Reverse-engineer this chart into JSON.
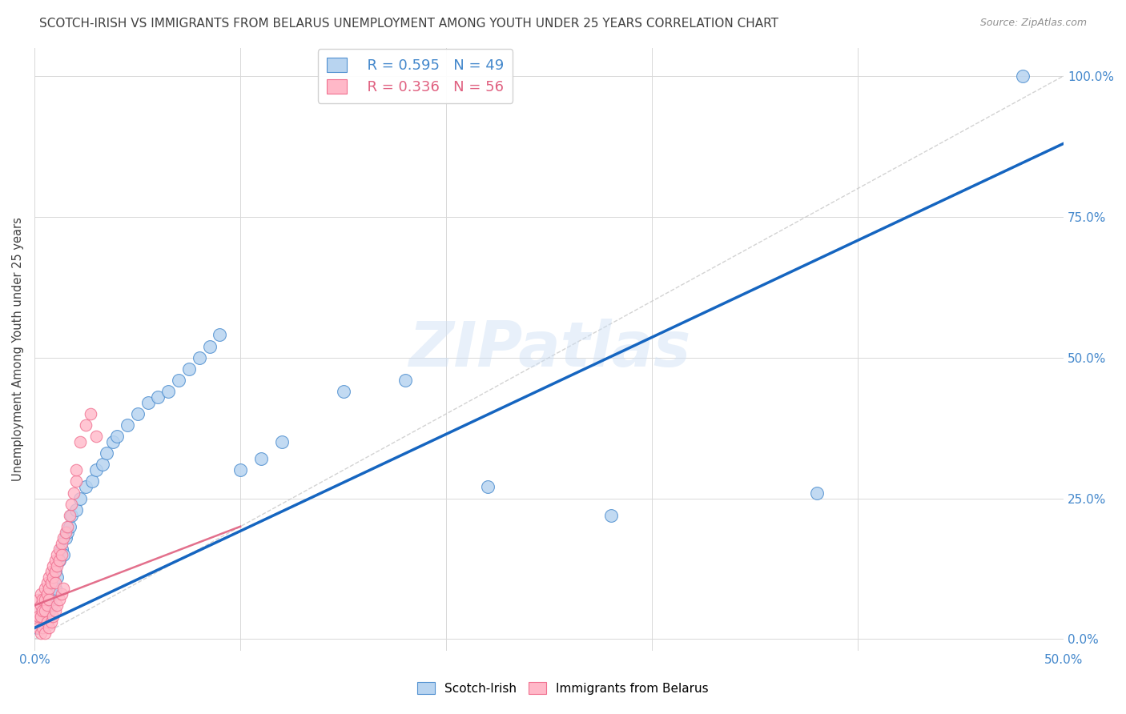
{
  "title": "SCOTCH-IRISH VS IMMIGRANTS FROM BELARUS UNEMPLOYMENT AMONG YOUTH UNDER 25 YEARS CORRELATION CHART",
  "source": "Source: ZipAtlas.com",
  "ylabel": "Unemployment Among Youth under 25 years",
  "ylabel_right_ticks": [
    "0.0%",
    "25.0%",
    "50.0%",
    "75.0%",
    "100.0%"
  ],
  "ylabel_right_vals": [
    0.0,
    0.25,
    0.5,
    0.75,
    1.0
  ],
  "legend_blue_r": "R = 0.595",
  "legend_blue_n": "N = 49",
  "legend_pink_r": "R = 0.336",
  "legend_pink_n": "N = 56",
  "legend_blue_label": "Scotch-Irish",
  "legend_pink_label": "Immigrants from Belarus",
  "watermark": "ZIPatlas",
  "blue_color": "#b8d4f0",
  "blue_edge": "#5090d0",
  "pink_color": "#ffb8c8",
  "pink_edge": "#f07090",
  "line_blue": "#1565c0",
  "line_pink": "#e06080",
  "diag_color": "#c8c8c8",
  "title_color": "#404040",
  "axis_color": "#4488cc",
  "blue_scatter_x": [
    0.001,
    0.002,
    0.003,
    0.004,
    0.005,
    0.005,
    0.006,
    0.007,
    0.008,
    0.008,
    0.009,
    0.01,
    0.01,
    0.011,
    0.012,
    0.013,
    0.014,
    0.015,
    0.016,
    0.017,
    0.018,
    0.02,
    0.022,
    0.025,
    0.028,
    0.03,
    0.033,
    0.035,
    0.038,
    0.04,
    0.045,
    0.05,
    0.055,
    0.06,
    0.065,
    0.07,
    0.075,
    0.08,
    0.085,
    0.09,
    0.1,
    0.11,
    0.12,
    0.15,
    0.18,
    0.22,
    0.28,
    0.38,
    0.48
  ],
  "blue_scatter_y": [
    0.02,
    0.03,
    0.04,
    0.05,
    0.06,
    0.04,
    0.07,
    0.05,
    0.08,
    0.06,
    0.1,
    0.12,
    0.09,
    0.11,
    0.14,
    0.16,
    0.15,
    0.18,
    0.19,
    0.2,
    0.22,
    0.23,
    0.25,
    0.27,
    0.28,
    0.3,
    0.31,
    0.33,
    0.35,
    0.36,
    0.38,
    0.4,
    0.42,
    0.43,
    0.44,
    0.46,
    0.48,
    0.5,
    0.52,
    0.54,
    0.3,
    0.32,
    0.35,
    0.44,
    0.46,
    0.27,
    0.22,
    0.26,
    1.0
  ],
  "pink_scatter_x": [
    0.001,
    0.001,
    0.002,
    0.002,
    0.003,
    0.003,
    0.003,
    0.004,
    0.004,
    0.005,
    0.005,
    0.005,
    0.006,
    0.006,
    0.006,
    0.007,
    0.007,
    0.007,
    0.008,
    0.008,
    0.009,
    0.009,
    0.01,
    0.01,
    0.01,
    0.011,
    0.011,
    0.012,
    0.012,
    0.013,
    0.013,
    0.014,
    0.015,
    0.016,
    0.017,
    0.018,
    0.019,
    0.02,
    0.02,
    0.022,
    0.025,
    0.027,
    0.03,
    0.002,
    0.003,
    0.004,
    0.005,
    0.006,
    0.007,
    0.008,
    0.009,
    0.01,
    0.011,
    0.012,
    0.013,
    0.014
  ],
  "pink_scatter_y": [
    0.05,
    0.03,
    0.07,
    0.04,
    0.06,
    0.04,
    0.08,
    0.07,
    0.05,
    0.09,
    0.07,
    0.05,
    0.1,
    0.08,
    0.06,
    0.11,
    0.09,
    0.07,
    0.12,
    0.1,
    0.13,
    0.11,
    0.14,
    0.12,
    0.1,
    0.15,
    0.13,
    0.16,
    0.14,
    0.17,
    0.15,
    0.18,
    0.19,
    0.2,
    0.22,
    0.24,
    0.26,
    0.28,
    0.3,
    0.35,
    0.38,
    0.4,
    0.36,
    0.02,
    0.01,
    0.02,
    0.01,
    0.03,
    0.02,
    0.03,
    0.04,
    0.05,
    0.06,
    0.07,
    0.08,
    0.09
  ],
  "xlim": [
    0.0,
    0.5
  ],
  "ylim": [
    -0.02,
    1.05
  ],
  "xgrid_vals": [
    0.0,
    0.1,
    0.2,
    0.3,
    0.4,
    0.5
  ],
  "ygrid_vals": [
    0.0,
    0.25,
    0.5,
    0.75,
    1.0
  ],
  "blue_line_x0": 0.0,
  "blue_line_y0": 0.02,
  "blue_line_x1": 0.5,
  "blue_line_y1": 0.88,
  "pink_line_x0": 0.0,
  "pink_line_y0": 0.06,
  "pink_line_x1": 0.1,
  "pink_line_y1": 0.2
}
